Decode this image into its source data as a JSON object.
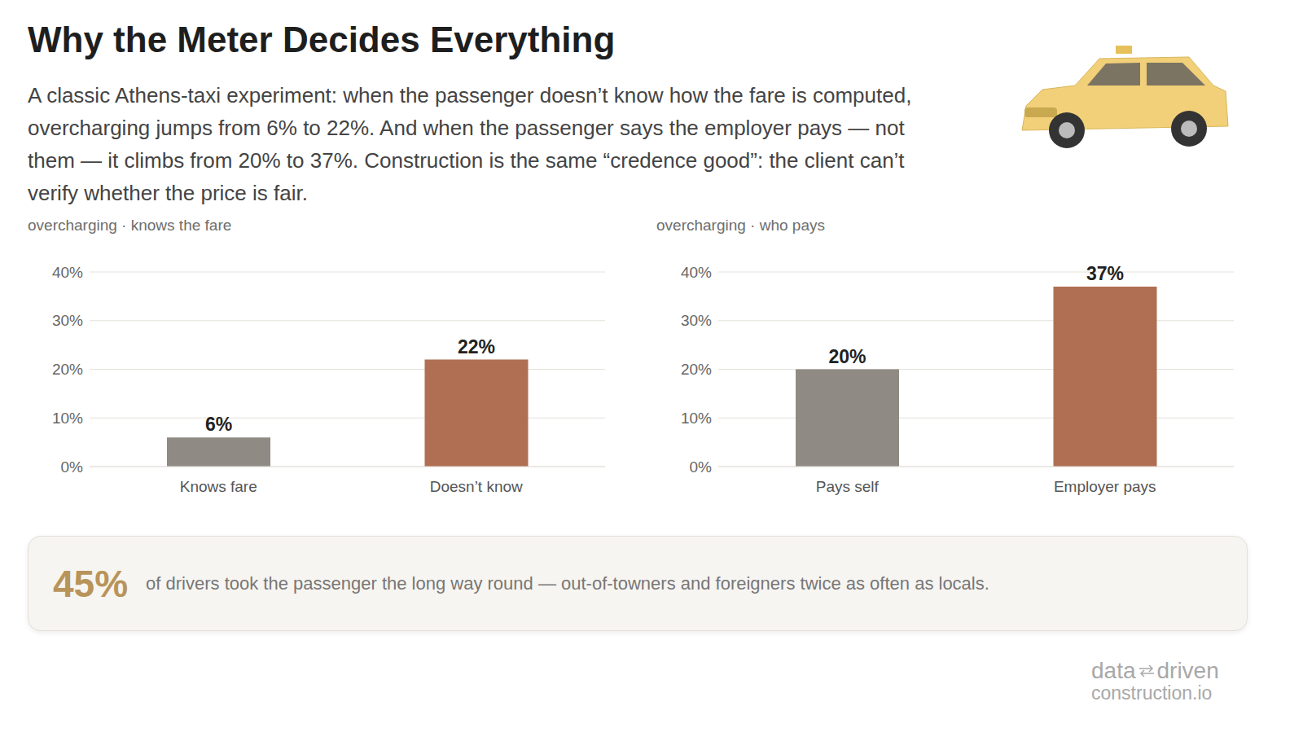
{
  "title": "Why the Meter Decides Everything",
  "subtitle": "A classic Athens-taxi experiment: when the passenger doesn’t know how the fare is computed, overcharging jumps from 6% to 22%. And when the passenger says the employer pays — not them — it climbs from 20% to 37%. Construction is the same “credence good”: the client can’t verify whether the price is fair.",
  "chart_data": [
    {
      "type": "bar",
      "title": "overcharging · knows the fare",
      "categories": [
        "Knows fare",
        "Doesn’t know"
      ],
      "values": [
        6,
        22
      ],
      "value_labels": [
        "6%",
        "22%"
      ],
      "colors": [
        "#8f8b84",
        "#b06f53"
      ],
      "ylim": [
        0,
        40
      ],
      "yticks": [
        {
          "value": 0,
          "label": "0%"
        },
        {
          "value": 10,
          "label": "10%"
        },
        {
          "value": 20,
          "label": "20%"
        },
        {
          "value": 30,
          "label": "30%"
        },
        {
          "value": 40,
          "label": "40%"
        }
      ],
      "grid": true,
      "data_labels": true
    },
    {
      "type": "bar",
      "title": "overcharging · who pays",
      "categories": [
        "Pays self",
        "Employer pays"
      ],
      "values": [
        20,
        37
      ],
      "value_labels": [
        "20%",
        "37%"
      ],
      "colors": [
        "#8f8b84",
        "#b06f53"
      ],
      "ylim": [
        0,
        40
      ],
      "yticks": [
        {
          "value": 0,
          "label": "0%"
        },
        {
          "value": 10,
          "label": "10%"
        },
        {
          "value": 20,
          "label": "20%"
        },
        {
          "value": 30,
          "label": "30%"
        },
        {
          "value": 40,
          "label": "40%"
        }
      ],
      "grid": true,
      "data_labels": true
    }
  ],
  "callout": {
    "value": "45%",
    "text": "of drivers took the passenger the long way round — out-of-towners and foreigners twice as often as locals."
  },
  "logo": {
    "line1": [
      "data",
      "driven"
    ],
    "line2": "construction.io"
  }
}
